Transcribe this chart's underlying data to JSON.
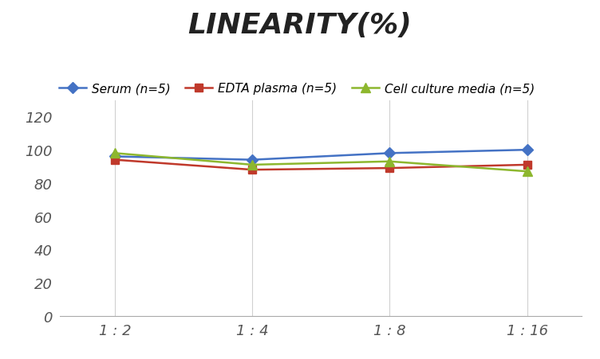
{
  "title": "LINEARITY(%)",
  "x_labels": [
    "1 : 2",
    "1 : 4",
    "1 : 8",
    "1 : 16"
  ],
  "x_positions": [
    0,
    1,
    2,
    3
  ],
  "series": [
    {
      "label": "Serum (n=5)",
      "values": [
        96,
        94,
        98,
        100
      ],
      "color": "#4472C4",
      "marker": "D",
      "marker_size": 7,
      "linewidth": 1.8
    },
    {
      "label": "EDTA plasma (n=5)",
      "values": [
        94,
        88,
        89,
        91
      ],
      "color": "#C0392B",
      "marker": "s",
      "marker_size": 7,
      "linewidth": 1.8
    },
    {
      "label": "Cell culture media (n=5)",
      "values": [
        98,
        91,
        93,
        87
      ],
      "color": "#8DB72E",
      "marker": "^",
      "marker_size": 8,
      "linewidth": 1.8
    }
  ],
  "ylim": [
    0,
    130
  ],
  "yticks": [
    0,
    20,
    40,
    60,
    80,
    100,
    120
  ],
  "background_color": "#ffffff",
  "grid_color": "#d0d0d0",
  "title_fontsize": 26,
  "legend_fontsize": 11,
  "tick_fontsize": 13
}
